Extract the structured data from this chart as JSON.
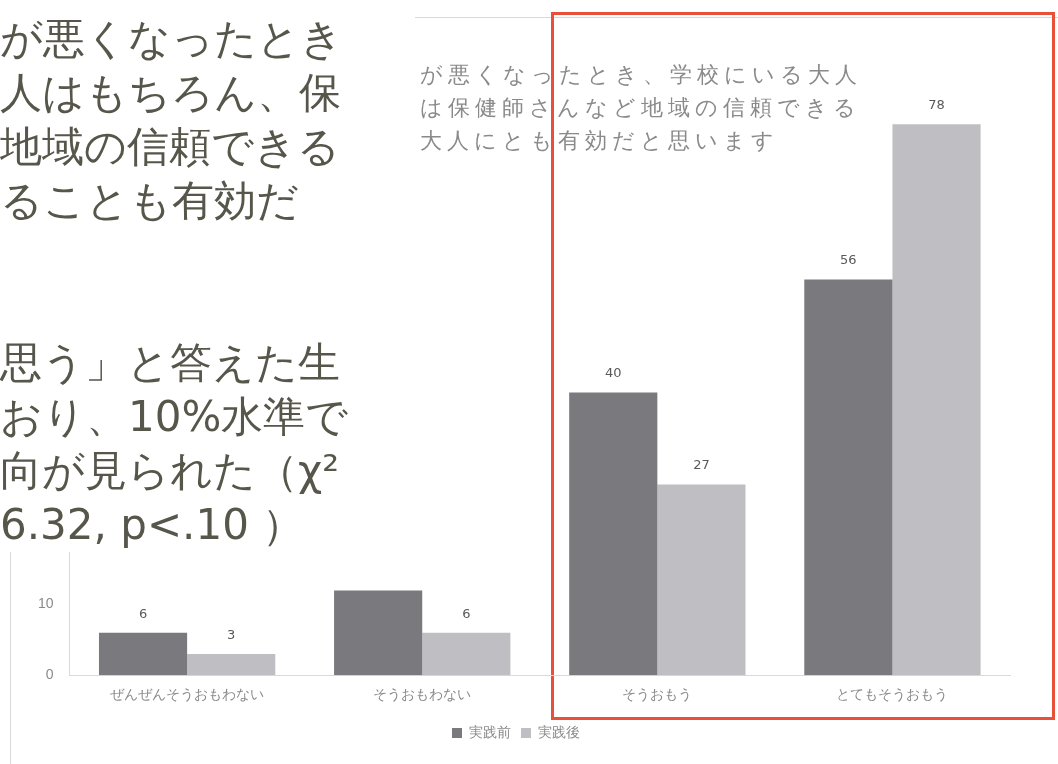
{
  "chart_data": {
    "type": "bar",
    "title": "が悪くなったとき、学校にいる大人は保健師さんなど地域の信頼できる大人にとも有効だと思います",
    "categories": [
      "ぜんぜんそうおもわない",
      "そうおもわない",
      "そうおもう",
      "とてもそうおもう"
    ],
    "series": [
      {
        "name": "実践前",
        "color": "#7a7a7e",
        "values": [
          6,
          12,
          40,
          56
        ],
        "value_labels": [
          "6",
          null,
          "40",
          "56"
        ]
      },
      {
        "name": "実践後",
        "color": "#bfbfc3",
        "values": [
          3,
          6,
          27,
          78
        ],
        "value_labels": [
          "3",
          "6",
          "27",
          "78"
        ]
      }
    ],
    "ylim": [
      0,
      80
    ],
    "yticks": [
      0,
      10
    ],
    "grid": false,
    "legend": "bottom",
    "annotations": [
      "が悪くなったとき",
      "人はもちろん、保",
      "地域の信頼できる",
      "ることも有効だ",
      "思う」と答えた生",
      "おり、10%水準で",
      "向が見られた（χ²",
      "6.32, p<.10 ）"
    ]
  }
}
